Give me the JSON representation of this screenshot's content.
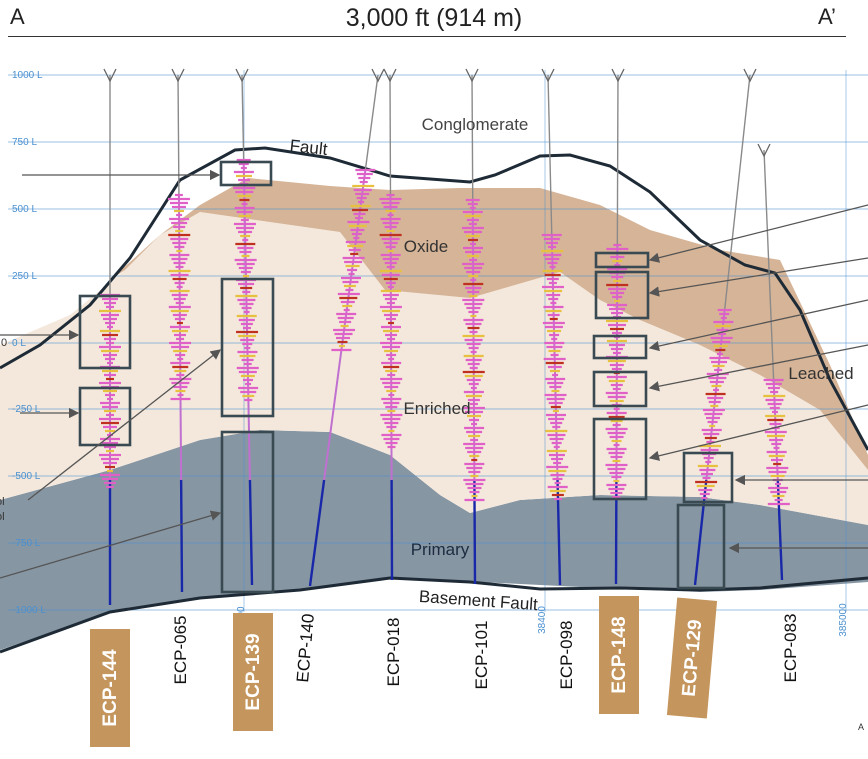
{
  "header": {
    "left_marker": "A",
    "title": "3,000 ft (914 m)",
    "right_marker": "A’"
  },
  "elevation_ticks": [
    "1000",
    "750",
    "500",
    "250",
    "0",
    "-250",
    "-500",
    "-750",
    "-1000"
  ],
  "easting_ticks": [
    "00",
    "38400",
    "385000"
  ],
  "units": {
    "conglomerate": "Conglomerate",
    "oxide": "Oxide",
    "enriched": "Enriched",
    "leached": "Leached",
    "primary": "Primary",
    "fault_top": "Fault",
    "basement_fault": "Basement Fault"
  },
  "holes": [
    {
      "id": "ECP-144",
      "highlight": true
    },
    {
      "id": "ECP-065",
      "highlight": false
    },
    {
      "id": "ECP-139",
      "highlight": true
    },
    {
      "id": "ECP-140",
      "highlight": false
    },
    {
      "id": "ECP-018",
      "highlight": false
    },
    {
      "id": "ECP-101",
      "highlight": false
    },
    {
      "id": "ECP-098",
      "highlight": false
    },
    {
      "id": "ECP-148",
      "highlight": true
    },
    {
      "id": "ECP-129",
      "highlight": true
    },
    {
      "id": "ECP-083",
      "highlight": false
    }
  ],
  "edge_fragments": {
    "left_a": "ol",
    "left_b": "ol",
    "left_c": "0",
    "right_bottom": "A"
  },
  "colors": {
    "background": "#ffffff",
    "conglomerate": "#ffffff",
    "oxide": "#d6b497",
    "enriched": "#f4e8dc",
    "primary": "#8796a3",
    "fault_line": "#1e2b36",
    "grid": "#4a90d0",
    "label_box": "#c4955c",
    "highlight_box": "#3a4a52",
    "assay_pink": "#e060c8",
    "assay_yellow": "#e8c040",
    "assay_red": "#c03020",
    "drill_trace_upper": "#c070d0",
    "drill_trace_lower": "#1828a8",
    "arrow": "#555555"
  }
}
